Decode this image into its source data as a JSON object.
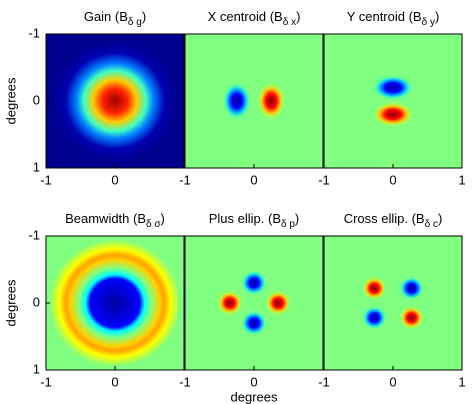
{
  "chart_data": [
    {
      "type": "image",
      "title": [
        "Gain (B",
        "δ g",
        ")"
      ],
      "ylabel": "degrees",
      "xlim": [
        -1,
        1
      ],
      "ylim": [
        -1,
        1
      ],
      "xticks": [
        -1,
        0
      ],
      "yticks": [
        -1,
        0,
        1
      ]
    },
    {
      "type": "image",
      "title": [
        "X centroid (B",
        "δ x",
        ")"
      ],
      "xlim": [
        -1,
        1
      ],
      "ylim": [
        -1,
        1
      ],
      "xticks": [
        -1,
        0
      ]
    },
    {
      "type": "image",
      "title": [
        "Y centroid (B",
        "δ y",
        ")"
      ],
      "xlim": [
        -1,
        1
      ],
      "ylim": [
        -1,
        1
      ],
      "xticks": [
        -1,
        0,
        1
      ]
    },
    {
      "type": "image",
      "title": [
        "Beamwidth (B",
        "δ σ",
        ")"
      ],
      "ylabel": "degrees",
      "xlim": [
        -1,
        1
      ],
      "ylim": [
        -1,
        1
      ],
      "xticks": [
        -1,
        0
      ],
      "yticks": [
        -1,
        0,
        1
      ]
    },
    {
      "type": "image",
      "title": [
        "Plus ellip. (B",
        "δ p",
        ")"
      ],
      "xlabel": "degrees",
      "xlim": [
        -1,
        1
      ],
      "ylim": [
        -1,
        1
      ],
      "xticks": [
        -1,
        0
      ]
    },
    {
      "type": "image",
      "title": [
        "Cross ellip. (B",
        "δ c",
        ")"
      ],
      "xlim": [
        -1,
        1
      ],
      "ylim": [
        -1,
        1
      ],
      "xticks": [
        -1,
        0,
        1
      ]
    }
  ]
}
